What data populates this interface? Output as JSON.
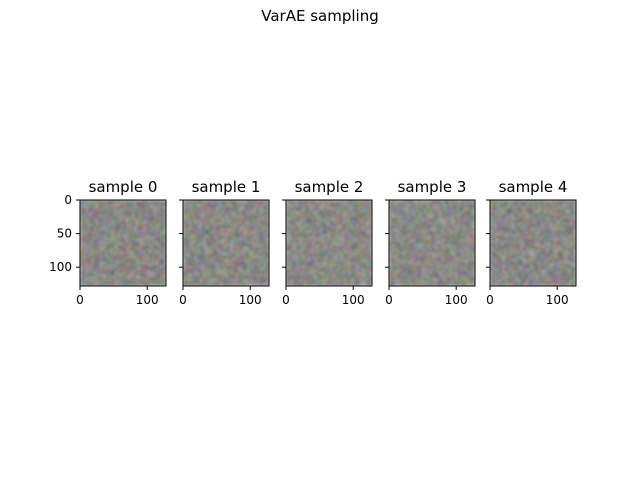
{
  "figure": {
    "title": "VarAE sampling"
  },
  "panels": [
    {
      "title": "sample 0"
    },
    {
      "title": "sample 1"
    },
    {
      "title": "sample 2"
    },
    {
      "title": "sample 3"
    },
    {
      "title": "sample 4"
    }
  ],
  "chart_data": {
    "type": "heatmap",
    "title": "VarAE sampling",
    "image_size": [
      128,
      128
    ],
    "panel_titles": [
      "sample 0",
      "sample 1",
      "sample 2",
      "sample 3",
      "sample 4"
    ],
    "x_ticks": [
      0,
      100
    ],
    "y_ticks": [
      0,
      50,
      100
    ],
    "xlim": [
      0,
      128
    ],
    "ylim": [
      128,
      0
    ],
    "y_tick_labels_on": "first panel only",
    "content": "noisy grayish RGB noise images (random samples)",
    "base_color": "#8c8a84",
    "grid": false
  }
}
